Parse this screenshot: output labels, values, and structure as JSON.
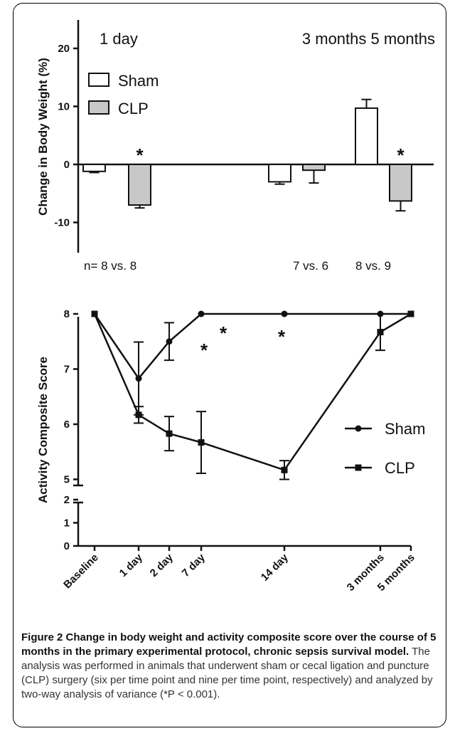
{
  "colors": {
    "sham_bar": "#ffffff",
    "clp_bar": "#c8c8c8",
    "line": "#111111"
  },
  "top_panel": {
    "time_labels": [
      "1 day",
      "3 months 5 months"
    ],
    "n_labels": [
      "n= 8 vs. 8",
      "7 vs. 6",
      "8 vs. 9"
    ],
    "star": "*"
  },
  "bottom_panel": {
    "star": "*"
  },
  "chart_data": [
    {
      "type": "bar",
      "ylabel": "Change in Body Weight (%)",
      "ylim": [
        -15,
        25
      ],
      "yticks": [
        "20",
        "10",
        "0",
        "-10"
      ],
      "categories": [
        "1 day",
        "3 months",
        "5 months"
      ],
      "series": [
        {
          "name": "Sham",
          "values": [
            -1.2,
            -3.0,
            9.7
          ],
          "errors": [
            0.2,
            0.4,
            1.5
          ]
        },
        {
          "name": "CLP",
          "values": [
            -7.0,
            -1.0,
            -6.3
          ],
          "errors": [
            0.5,
            2.2,
            1.7
          ]
        }
      ],
      "significant": [
        true,
        false,
        true
      ],
      "legend": "top-left"
    },
    {
      "type": "line",
      "ylabel": "Activity Composite Score",
      "yticks": [
        "8",
        "7",
        "6",
        "5",
        "2",
        "1",
        "0"
      ],
      "y_axis_break": [
        2.5,
        4.75
      ],
      "x": [
        "Baseline",
        "1 day",
        "2 day",
        "7 day",
        "14 day",
        "3 months",
        "5 months"
      ],
      "series": [
        {
          "name": "Sham",
          "marker": "circle",
          "values": [
            8,
            6.83,
            7.5,
            8,
            8,
            8,
            8
          ],
          "errors": [
            0,
            0.66,
            0.34,
            0,
            0,
            0,
            0
          ]
        },
        {
          "name": "CLP",
          "marker": "square",
          "values": [
            8,
            6.17,
            5.83,
            5.67,
            5.17,
            7.67,
            8
          ],
          "errors": [
            0,
            0.15,
            0.31,
            0.56,
            0.17,
            0.33,
            0
          ]
        }
      ],
      "significant_x": [
        "2 day",
        "7 day",
        "14 day"
      ],
      "legend": "right"
    }
  ],
  "caption": {
    "title": "Figure 2 Change in body weight and activity composite score over the course of 5 months in the primary experimental protocol, chronic sepsis survival model.",
    "body": "The analysis was performed in animals that underwent sham or cecal ligation and puncture (CLP) surgery (six per time point and nine per time point, respectively) and analyzed by two-way analysis of variance (*P < 0.001)."
  }
}
